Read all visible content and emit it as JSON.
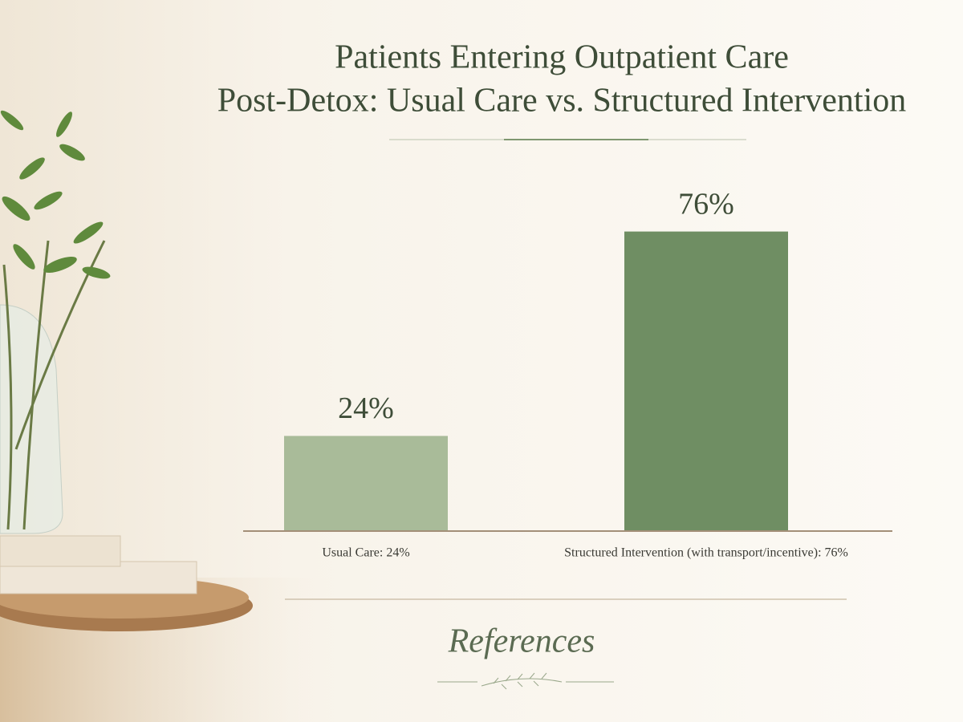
{
  "chart_data": {
    "type": "bar",
    "title": [
      "Patients Entering Outpatient Care",
      "Post-Detox: Usual Care vs. Structured Intervention"
    ],
    "categories": [
      "Usual Care: 24%",
      "Structured Intervention (with transport/incentive): 76%"
    ],
    "values": [
      24,
      76
    ],
    "value_labels": [
      "24%",
      "76%"
    ],
    "colors": [
      "#a9bb99",
      "#6f8e63"
    ],
    "ylim": [
      0,
      100
    ],
    "annotation": "References"
  }
}
